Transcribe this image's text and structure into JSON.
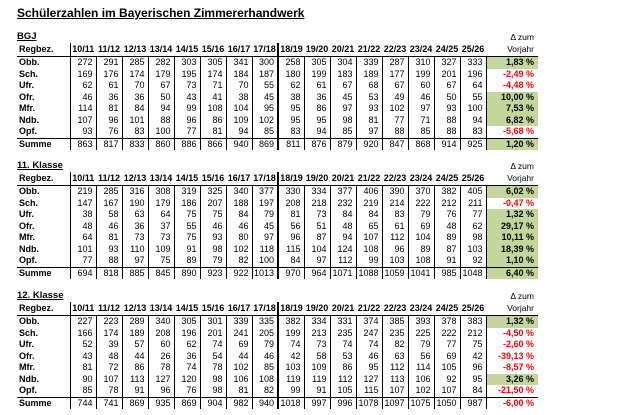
{
  "title": "Schülerzahlen im Bayerischen Zimmererhandwerk",
  "row_header": "Regbez.",
  "delta_header": {
    "line1": "Δ zum",
    "line2": "Vorjahr"
  },
  "years": [
    "10/11",
    "11/12",
    "12/13",
    "13/14",
    "14/15",
    "15/16",
    "16/17",
    "17/18",
    "18/19",
    "19/20",
    "20/21",
    "21/22",
    "22/23",
    "23/24",
    "24/25",
    "25/26"
  ],
  "colors": {
    "positive_bg": "#c3d69b",
    "negative_text": "#ff0000",
    "border": "#000000"
  },
  "tables": [
    {
      "label": "BGJ",
      "rows": [
        {
          "name": "Obb.",
          "values": [
            272,
            291,
            285,
            282,
            303,
            305,
            341,
            300,
            258,
            305,
            304,
            339,
            287,
            310,
            327,
            333
          ],
          "delta": "1,83 %",
          "positive": true
        },
        {
          "name": "Sch.",
          "values": [
            169,
            176,
            174,
            179,
            195,
            174,
            184,
            187,
            180,
            199,
            183,
            189,
            177,
            199,
            201,
            196
          ],
          "delta": "-2,49 %",
          "positive": false
        },
        {
          "name": "Ufr.",
          "values": [
            62,
            61,
            70,
            67,
            73,
            71,
            70,
            55,
            62,
            61,
            67,
            68,
            67,
            60,
            67,
            64
          ],
          "delta": "-4,48 %",
          "positive": false
        },
        {
          "name": "Ofr.",
          "values": [
            46,
            36,
            36,
            50,
            43,
            41,
            38,
            45,
            38,
            36,
            45,
            53,
            49,
            46,
            50,
            55
          ],
          "delta": "10,00 %",
          "positive": true
        },
        {
          "name": "Mfr.",
          "values": [
            114,
            81,
            84,
            94,
            99,
            108,
            104,
            95,
            95,
            86,
            97,
            93,
            102,
            97,
            93,
            100
          ],
          "delta": "7,53 %",
          "positive": true
        },
        {
          "name": "Ndb.",
          "values": [
            107,
            96,
            101,
            88,
            96,
            86,
            109,
            102,
            95,
            95,
            98,
            81,
            77,
            71,
            88,
            94
          ],
          "delta": "6,82 %",
          "positive": true
        },
        {
          "name": "Opf.",
          "values": [
            93,
            76,
            83,
            100,
            77,
            81,
            94,
            85,
            83,
            94,
            85,
            97,
            88,
            85,
            88,
            83
          ],
          "delta": "-5,68 %",
          "positive": false
        }
      ],
      "summe": {
        "name": "Summe",
        "values": [
          863,
          817,
          833,
          860,
          886,
          866,
          940,
          869,
          811,
          876,
          879,
          920,
          847,
          868,
          914,
          925
        ],
        "delta": "1,20 %",
        "positive": true
      }
    },
    {
      "label": "11. Klasse",
      "rows": [
        {
          "name": "Obb.",
          "values": [
            219,
            285,
            316,
            308,
            319,
            325,
            340,
            377,
            330,
            334,
            377,
            406,
            390,
            370,
            382,
            405
          ],
          "delta": "6,02 %",
          "positive": true
        },
        {
          "name": "Sch.",
          "values": [
            147,
            167,
            190,
            179,
            186,
            207,
            188,
            197,
            208,
            218,
            232,
            219,
            214,
            222,
            212,
            211
          ],
          "delta": "-0,47 %",
          "positive": false
        },
        {
          "name": "Ufr.",
          "values": [
            38,
            58,
            63,
            64,
            75,
            75,
            84,
            79,
            81,
            73,
            84,
            84,
            83,
            79,
            76,
            77
          ],
          "delta": "1,32 %",
          "positive": true
        },
        {
          "name": "Ofr.",
          "values": [
            48,
            46,
            36,
            37,
            55,
            46,
            46,
            45,
            56,
            51,
            48,
            65,
            61,
            69,
            48,
            62
          ],
          "delta": "29,17 %",
          "positive": true
        },
        {
          "name": "Mfr.",
          "values": [
            64,
            81,
            73,
            73,
            75,
            93,
            80,
            97,
            96,
            87,
            94,
            107,
            112,
            104,
            89,
            98
          ],
          "delta": "10,11 %",
          "positive": true
        },
        {
          "name": "Ndb.",
          "values": [
            101,
            93,
            110,
            109,
            91,
            98,
            102,
            118,
            115,
            104,
            124,
            108,
            96,
            89,
            87,
            103
          ],
          "delta": "18,39 %",
          "positive": true
        },
        {
          "name": "Opf.",
          "values": [
            77,
            88,
            97,
            75,
            89,
            79,
            82,
            100,
            84,
            97,
            112,
            99,
            103,
            108,
            91,
            92
          ],
          "delta": "1,10 %",
          "positive": true
        }
      ],
      "summe": {
        "name": "Summe",
        "values": [
          694,
          818,
          885,
          845,
          890,
          923,
          922,
          1013,
          970,
          964,
          1071,
          1088,
          1059,
          1041,
          985,
          1048
        ],
        "delta": "6,40 %",
        "positive": true
      }
    },
    {
      "label": "12. Klasse",
      "rows": [
        {
          "name": "Obb.",
          "values": [
            227,
            223,
            289,
            340,
            305,
            301,
            339,
            335,
            382,
            334,
            331,
            374,
            385,
            393,
            378,
            383
          ],
          "delta": "1,32 %",
          "positive": true
        },
        {
          "name": "Sch.",
          "values": [
            166,
            174,
            189,
            208,
            196,
            201,
            241,
            205,
            199,
            213,
            235,
            247,
            235,
            225,
            222,
            212
          ],
          "delta": "-4,50 %",
          "positive": false
        },
        {
          "name": "Ufr.",
          "values": [
            52,
            39,
            57,
            60,
            62,
            74,
            69,
            79,
            74,
            73,
            74,
            74,
            82,
            79,
            77,
            75
          ],
          "delta": "-2,60 %",
          "positive": false
        },
        {
          "name": "Ofr.",
          "values": [
            43,
            48,
            44,
            26,
            36,
            54,
            44,
            46,
            42,
            58,
            53,
            46,
            63,
            56,
            69,
            42
          ],
          "delta": "-39,13 %",
          "positive": false
        },
        {
          "name": "Mfr.",
          "values": [
            81,
            72,
            86,
            78,
            74,
            78,
            102,
            85,
            103,
            109,
            86,
            95,
            112,
            114,
            105,
            96
          ],
          "delta": "-8,57 %",
          "positive": false
        },
        {
          "name": "Ndb.",
          "values": [
            90,
            107,
            113,
            127,
            120,
            98,
            106,
            108,
            119,
            119,
            112,
            127,
            113,
            106,
            92,
            95
          ],
          "delta": "3,26 %",
          "positive": true
        },
        {
          "name": "Opf.",
          "values": [
            85,
            78,
            91,
            96,
            76,
            98,
            81,
            82,
            99,
            91,
            105,
            115,
            107,
            102,
            107,
            84
          ],
          "delta": "-21,50 %",
          "positive": false
        }
      ],
      "summe": {
        "name": "Summe",
        "values": [
          744,
          741,
          869,
          935,
          869,
          904,
          982,
          940,
          1018,
          997,
          996,
          1078,
          1097,
          1075,
          1050,
          987
        ],
        "delta": "-6,00 %",
        "positive": false
      }
    }
  ]
}
